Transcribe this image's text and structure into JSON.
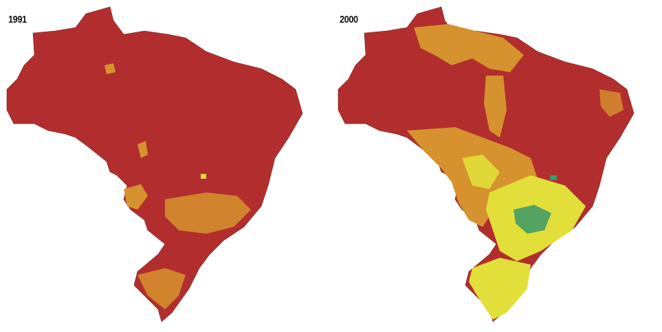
{
  "panels": [
    {
      "year": "1991",
      "base_color": "#b22e2e",
      "patches": [
        {
          "color": "#d6922e",
          "shape": "small-north"
        },
        {
          "color": "#d6922e",
          "shape": "center-west"
        },
        {
          "color": "#d6922e",
          "shape": "center-blob"
        },
        {
          "color": "#d6922e",
          "shape": "southeast-speckle"
        },
        {
          "color": "#d6922e",
          "shape": "south"
        },
        {
          "color": "#e3df3a",
          "shape": "center-dot"
        }
      ]
    },
    {
      "year": "2000",
      "base_color": "#b22e2e",
      "patches": [
        {
          "color": "#d6922e",
          "shape": "north-large"
        },
        {
          "color": "#d6922e",
          "shape": "center-west"
        },
        {
          "color": "#d6922e",
          "shape": "center-large"
        },
        {
          "color": "#e3df3a",
          "shape": "southeast-large"
        },
        {
          "color": "#e3df3a",
          "shape": "south"
        },
        {
          "color": "#3a9a6a",
          "shape": "southeast-green"
        }
      ]
    }
  ]
}
